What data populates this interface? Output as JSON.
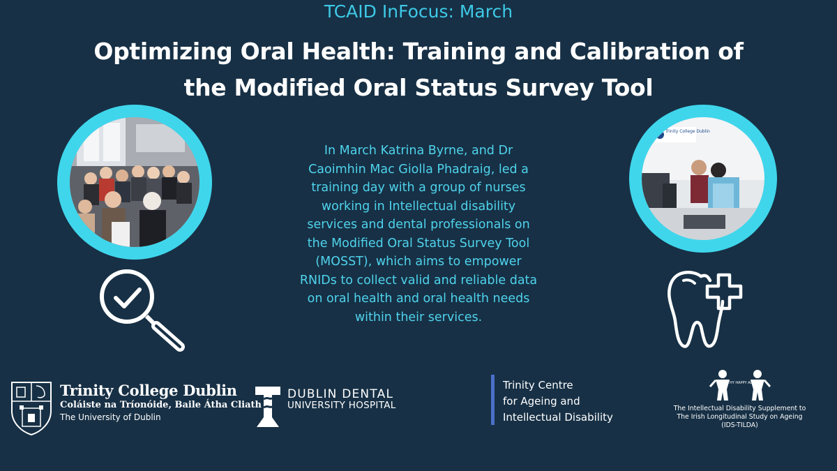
{
  "header": {
    "kicker": "TCAID InFocus: March",
    "title_line1": "Optimizing Oral Health: Training and Calibration of",
    "title_line2": "the Modified Oral Status Survey Tool"
  },
  "body": {
    "lines": [
      "In March Katrina Byrne, and Dr",
      "Caoimhin Mac Giolla Phadraig,  led a",
      "training day with a group of nurses",
      "working in Intellectual disability",
      "services and dental professionals on",
      "the Modified Oral Status Survey Tool",
      "(MOSST), which aims to empower",
      "RNIDs to collect valid and reliable data",
      "on oral health and oral health needs",
      "within their services."
    ]
  },
  "icons": {
    "left": "magnifier-check-icon",
    "right": "tooth-cross-icon"
  },
  "photos": {
    "left": "group-photo",
    "right": "training-photo",
    "right_sign": "Trinity College Dublin"
  },
  "logos": {
    "tcd": {
      "name": "Trinity College Dublin",
      "irish": "Coláiste na Tríonóide, Baile Átha Cliath",
      "university": "The University of Dublin"
    },
    "ddh": {
      "line1": "DUBLIN DENTAL",
      "line2": "UNIVERSITY HOSPITAL"
    },
    "tcaid": {
      "line1": "Trinity Centre",
      "line2": "for Ageing and",
      "line3": "Intellectual Disability"
    },
    "ids_tilda": {
      "badge": "HEALTHY HAPPY AGEING",
      "line1": "The Intellectual Disability Supplement to",
      "line2": "The Irish Longitudinal Study on Ageing",
      "line3": "(IDS-TILDA)"
    }
  },
  "colors": {
    "background": "#173045",
    "accent": "#3ec9e6",
    "ring": "#3fd6ec",
    "tcaid_bar": "#4a6fc9"
  }
}
